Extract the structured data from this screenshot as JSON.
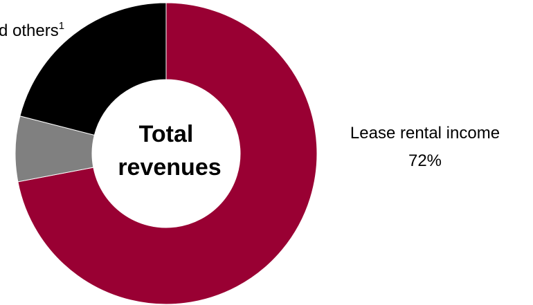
{
  "chart_data": {
    "type": "pie",
    "style": "donut",
    "center_label": [
      "Total",
      "revenues"
    ],
    "slices": [
      {
        "label": "Lease rental income",
        "value": 72,
        "value_label": "72%",
        "color": "#990033"
      },
      {
        "label": "",
        "value": 7,
        "value_label": "",
        "color": "#808080"
      },
      {
        "label": "d others",
        "superscript": "1",
        "value": 21,
        "value_label": "",
        "color": "#000000"
      }
    ]
  }
}
